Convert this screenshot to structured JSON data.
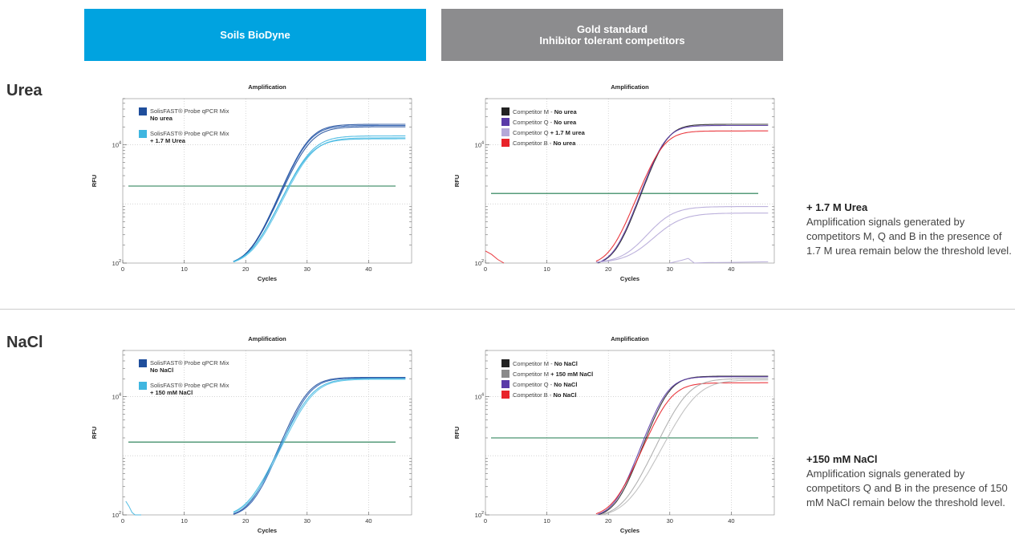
{
  "headers": {
    "left": "Soils BioDyne",
    "right_line1": "Gold standard",
    "right_line2": "Inhibitor tolerant competitors"
  },
  "rows": {
    "urea": "Urea",
    "nacl": "NaCl"
  },
  "notes": {
    "urea": {
      "title": "+ 1.7 M Urea",
      "body": "Amplification signals generated by competitors M, Q and B in the presence of 1.7 M urea remain below the threshold level."
    },
    "nacl": {
      "title": "+150 mM NaCl",
      "body": "Amplification signals generated by competitors Q and B in the presence of 150 mM NaCl remain below the threshold level."
    }
  },
  "colors": {
    "header_blue": "#00a3e0",
    "header_grey": "#8c8c8e",
    "solis_dark": "#1f4e9c",
    "solis_light": "#3fb6e0",
    "comp_m": "#222222",
    "comp_q": "#5a3aa8",
    "comp_q_light": "#b5a8d8",
    "comp_b": "#e8232a",
    "comp_grey": "#8a8a8a",
    "threshold": "#1e7a4e"
  },
  "chart_data": [
    {
      "type": "line",
      "title": "Amplification",
      "xlabel": "Cycles",
      "ylabel": "RFU",
      "xlim": [
        0,
        47
      ],
      "x_ticks": [
        "0",
        "10",
        "20",
        "30",
        "40"
      ],
      "y_scale": "log",
      "y_ticks": [
        "10",
        "10"
      ],
      "y_tick_exp": [
        "2",
        "4"
      ],
      "ylim": [
        100,
        60000
      ],
      "grid": "dotted",
      "threshold": 2000,
      "legend": [
        {
          "text": "SolisFAST® Probe qPCR Mix",
          "bold": "No urea",
          "color": "#1f4e9c"
        },
        {
          "text": "SolisFAST® Probe qPCR Mix",
          "bold": "+ 1.7 M Urea",
          "color": "#3fb6e0"
        }
      ],
      "series": [
        {
          "color": "#1f4e9c",
          "ct": 26,
          "plateau": 22000,
          "k": 0.6
        },
        {
          "color": "#2a5db0",
          "ct": 26,
          "plateau": 21000,
          "k": 0.6
        },
        {
          "color": "#1f4e9c",
          "ct": 26.2,
          "plateau": 20000,
          "k": 0.58
        },
        {
          "color": "#3fb6e0",
          "ct": 26.3,
          "plateau": 14000,
          "k": 0.55
        },
        {
          "color": "#5cc3e8",
          "ct": 26.4,
          "plateau": 13000,
          "k": 0.55
        },
        {
          "color": "#3fb6e0",
          "ct": 26.1,
          "plateau": 12500,
          "k": 0.55
        }
      ]
    },
    {
      "type": "line",
      "title": "Amplification",
      "xlabel": "Cycles",
      "ylabel": "RFU",
      "xlim": [
        0,
        47
      ],
      "x_ticks": [
        "0",
        "10",
        "20",
        "30",
        "40"
      ],
      "y_scale": "log",
      "y_ticks": [
        "10",
        "10"
      ],
      "y_tick_exp": [
        "2",
        "4"
      ],
      "ylim": [
        100,
        60000
      ],
      "grid": "dotted",
      "threshold": 1500,
      "legend": [
        {
          "text": "Competitor M - ",
          "bold": "No urea",
          "color": "#222222"
        },
        {
          "text": "Competitor Q - ",
          "bold": "No urea",
          "color": "#5a3aa8"
        },
        {
          "text": "Competitor Q ",
          "bold": "+ 1.7 M urea",
          "color": "#b5a8d8"
        },
        {
          "text": "Competitor B - ",
          "bold": "No urea",
          "color": "#e8232a"
        }
      ],
      "series": [
        {
          "color": "#222222",
          "ct": 25.2,
          "plateau": 22000,
          "k": 0.7
        },
        {
          "color": "#5a3aa8",
          "ct": 25,
          "plateau": 21000,
          "k": 0.7
        },
        {
          "color": "#e8232a",
          "ct": 24.6,
          "plateau": 17000,
          "k": 0.65
        },
        {
          "color": "#b5a8d8",
          "ct": 24.5,
          "plateau": 800,
          "k": 0.5,
          "base": 100
        },
        {
          "color": "#b5a8d8",
          "ct": 25.5,
          "plateau": 600,
          "k": 0.45,
          "base": 100
        }
      ],
      "noise": [
        {
          "color": "#e8232a",
          "x": [
            0,
            1,
            2,
            3
          ],
          "y": [
            160,
            140,
            115,
            100
          ]
        },
        {
          "color": "#b5a8d8",
          "x": [
            30,
            32,
            33,
            34,
            36,
            40,
            46
          ],
          "y": [
            100,
            112,
            120,
            100,
            102,
            103,
            105
          ]
        }
      ]
    },
    {
      "type": "line",
      "title": "Amplification",
      "xlabel": "Cycles",
      "ylabel": "RFU",
      "xlim": [
        0,
        47
      ],
      "x_ticks": [
        "0",
        "10",
        "20",
        "30",
        "40"
      ],
      "y_scale": "log",
      "y_ticks": [
        "10",
        "10"
      ],
      "y_tick_exp": [
        "2",
        "4"
      ],
      "ylim": [
        100,
        60000
      ],
      "grid": "dotted",
      "threshold": 1700,
      "legend": [
        {
          "text": "SolisFAST® Probe qPCR Mix",
          "bold": "No NaCl",
          "color": "#1f4e9c"
        },
        {
          "text": "SolisFAST® Probe qPCR Mix",
          "bold": "+ 150 mM NaCl",
          "color": "#3fb6e0"
        }
      ],
      "series": [
        {
          "color": "#1f4e9c",
          "ct": 25.8,
          "plateau": 21000,
          "k": 0.62
        },
        {
          "color": "#2a5db0",
          "ct": 26,
          "plateau": 20500,
          "k": 0.62
        },
        {
          "color": "#3fb6e0",
          "ct": 26.4,
          "plateau": 20000,
          "k": 0.55
        },
        {
          "color": "#5cc3e8",
          "ct": 26.6,
          "plateau": 19500,
          "k": 0.55
        }
      ],
      "noise": [
        {
          "color": "#3fb6e0",
          "x": [
            0.5,
            1,
            1.5,
            2,
            3
          ],
          "y": [
            170,
            140,
            110,
            100,
            100
          ]
        }
      ]
    },
    {
      "type": "line",
      "title": "Amplification",
      "xlabel": "Cycles",
      "ylabel": "RFU",
      "xlim": [
        0,
        47
      ],
      "x_ticks": [
        "0",
        "10",
        "20",
        "30",
        "40"
      ],
      "y_scale": "log",
      "y_ticks": [
        "10",
        "10"
      ],
      "y_tick_exp": [
        "2",
        "4"
      ],
      "ylim": [
        100,
        60000
      ],
      "grid": "dotted",
      "threshold": 2000,
      "legend": [
        {
          "text": "Competitor M - ",
          "bold": "No NaCl",
          "color": "#222222"
        },
        {
          "text": "Competitor M ",
          "bold": "+ 150 mM NaCl",
          "color": "#8a8a8a"
        },
        {
          "text": "Competitor Q - ",
          "bold": "No NaCl",
          "color": "#5a3aa8"
        },
        {
          "text": "Competitor B - ",
          "bold": "No NaCl",
          "color": "#e8232a"
        }
      ],
      "series": [
        {
          "color": "#222222",
          "ct": 25.6,
          "plateau": 22000,
          "k": 0.68
        },
        {
          "color": "#5a3aa8",
          "ct": 25.3,
          "plateau": 21500,
          "k": 0.68
        },
        {
          "color": "#e8232a",
          "ct": 25.8,
          "plateau": 17000,
          "k": 0.6
        },
        {
          "color": "#aaaaaa",
          "ct": 28.5,
          "plateau": 20000,
          "k": 0.55
        },
        {
          "color": "#bbbbbb",
          "ct": 30,
          "plateau": 19000,
          "k": 0.5
        }
      ]
    }
  ]
}
